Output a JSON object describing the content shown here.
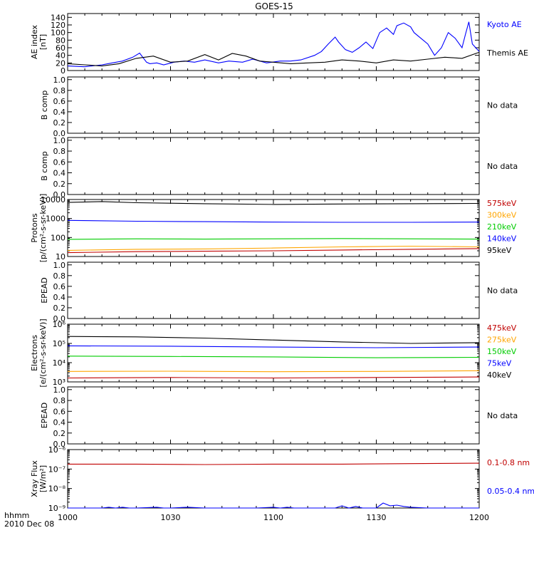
{
  "figure": {
    "title": "GOES-15",
    "time_label": "hhmm",
    "date_label": "2010 Dec 08",
    "no_data_text": "No data"
  },
  "colors": {
    "black": "#000000",
    "red": "#c00000",
    "orange": "#ffa500",
    "green": "#00cc00",
    "blue": "#0000ff",
    "axis": "#000000"
  },
  "chart_data": [
    {
      "type": "line",
      "id": "ae",
      "ylabel": "AE index\n[nT]",
      "ylim": [
        0,
        150
      ],
      "yticks": [
        0,
        20,
        40,
        60,
        80,
        100,
        120,
        140
      ],
      "xlim": [
        0,
        120
      ],
      "series": [
        {
          "name": "Kyoto AE",
          "color": "#0000ff",
          "x": [
            0,
            5,
            10,
            13,
            16,
            19,
            21,
            23,
            24,
            26,
            28,
            31,
            34,
            37,
            40,
            44,
            47,
            51,
            54,
            58,
            62,
            65,
            68,
            72,
            74,
            76,
            78,
            79,
            81,
            83,
            85,
            87,
            89,
            91,
            93,
            95,
            96,
            98,
            100,
            101,
            103,
            105,
            107,
            109,
            111,
            113,
            115,
            116,
            117,
            118,
            119,
            120
          ],
          "y": [
            12,
            10,
            15,
            20,
            25,
            35,
            46,
            22,
            18,
            20,
            15,
            22,
            25,
            22,
            28,
            20,
            25,
            22,
            30,
            20,
            25,
            25,
            28,
            40,
            50,
            70,
            88,
            75,
            55,
            48,
            60,
            75,
            58,
            100,
            112,
            95,
            118,
            125,
            115,
            100,
            85,
            70,
            40,
            60,
            100,
            85,
            60,
            95,
            128,
            70,
            60,
            50
          ]
        },
        {
          "name": "Themis AE",
          "color": "#000000",
          "x": [
            0,
            5,
            10,
            15,
            20,
            25,
            30,
            35,
            40,
            44,
            48,
            52,
            56,
            60,
            65,
            70,
            75,
            80,
            85,
            90,
            95,
            100,
            105,
            110,
            115,
            120
          ],
          "y": [
            18,
            15,
            12,
            18,
            32,
            38,
            22,
            25,
            42,
            28,
            45,
            38,
            25,
            22,
            18,
            20,
            22,
            28,
            25,
            20,
            28,
            25,
            30,
            35,
            32,
            48
          ]
        }
      ],
      "labels": [
        {
          "text": "Kyoto AE",
          "color": "#0000ff"
        },
        {
          "text": "Themis AE",
          "color": "#000000"
        }
      ]
    },
    {
      "type": "line",
      "id": "b1",
      "ylabel": "B comp",
      "ylim": [
        0,
        1.05
      ],
      "yticks": [
        "0.0",
        "0.2",
        "0.4",
        "0.6",
        "0.8",
        "1.0"
      ],
      "xlim": [
        0,
        120
      ],
      "series": []
    },
    {
      "type": "line",
      "id": "b2",
      "ylabel": "B comp",
      "ylim": [
        0,
        1.05
      ],
      "yticks": [
        "0.0",
        "0.2",
        "0.4",
        "0.6",
        "0.8",
        "1.0"
      ],
      "xlim": [
        0,
        120
      ],
      "series": []
    },
    {
      "type": "line",
      "id": "protons",
      "ylabel": "Protons\n[p/(cm²-s-sr-keV)]",
      "yscale": "log",
      "ylim": [
        10,
        10000
      ],
      "yticks": [
        "10",
        "100",
        "1000",
        "10000"
      ],
      "xlim": [
        0,
        120
      ],
      "series": [
        {
          "name": "575keV",
          "color": "#c00000",
          "x": [
            0,
            20,
            40,
            60,
            80,
            100,
            120
          ],
          "y": [
            16,
            18,
            19,
            20,
            22,
            24,
            26
          ]
        },
        {
          "name": "300keV",
          "color": "#ffa500",
          "x": [
            0,
            20,
            40,
            60,
            80,
            100,
            120
          ],
          "y": [
            21,
            24,
            25,
            28,
            32,
            35,
            32
          ]
        },
        {
          "name": "210keV",
          "color": "#00cc00",
          "x": [
            0,
            20,
            40,
            60,
            80,
            100,
            120
          ],
          "y": [
            80,
            85,
            82,
            85,
            88,
            85,
            82
          ]
        },
        {
          "name": "140keV",
          "color": "#0000ff",
          "x": [
            0,
            20,
            40,
            60,
            80,
            100,
            120
          ],
          "y": [
            800,
            720,
            680,
            650,
            630,
            630,
            650
          ]
        },
        {
          "name": "95keV",
          "color": "#000000",
          "x": [
            0,
            10,
            20,
            40,
            60,
            80,
            100,
            120
          ],
          "y": [
            7000,
            7800,
            6800,
            6000,
            5500,
            5800,
            6000,
            6200
          ]
        }
      ],
      "labels": [
        {
          "text": "575keV",
          "color": "#c00000"
        },
        {
          "text": "300keV",
          "color": "#ffa500"
        },
        {
          "text": "210keV",
          "color": "#00cc00"
        },
        {
          "text": "140keV",
          "color": "#0000ff"
        },
        {
          "text": "95keV",
          "color": "#000000"
        }
      ]
    },
    {
      "type": "line",
      "id": "epead1",
      "ylabel": "EPEAD",
      "ylim": [
        0,
        1.05
      ],
      "yticks": [
        "0.0",
        "0.2",
        "0.4",
        "0.6",
        "0.8",
        "1.0"
      ],
      "xlim": [
        0,
        120
      ],
      "series": []
    },
    {
      "type": "line",
      "id": "electrons",
      "ylabel": "Electrons\n[e/(cm²-s-sr-keV)]",
      "yscale": "log",
      "ylim": [
        1000,
        1000000
      ],
      "yticks": [
        "10³",
        "10⁴",
        "10⁵",
        "10⁶"
      ],
      "xlim": [
        0,
        120
      ],
      "series": [
        {
          "name": "475keV",
          "color": "#c00000",
          "x": [
            0,
            30,
            60,
            90,
            120
          ],
          "y": [
            1600,
            1700,
            1600,
            1700,
            1800
          ]
        },
        {
          "name": "275keV",
          "color": "#ffa500",
          "x": [
            0,
            30,
            60,
            90,
            120
          ],
          "y": [
            3500,
            3600,
            3400,
            3500,
            3800
          ]
        },
        {
          "name": "150keV",
          "color": "#00cc00",
          "x": [
            0,
            30,
            60,
            90,
            120
          ],
          "y": [
            22000,
            21000,
            20000,
            18000,
            19000
          ]
        },
        {
          "name": "75keV",
          "color": "#0000ff",
          "x": [
            0,
            30,
            60,
            90,
            120
          ],
          "y": [
            75000,
            72000,
            65000,
            60000,
            65000
          ]
        },
        {
          "name": "40keV",
          "color": "#000000",
          "x": [
            0,
            20,
            40,
            60,
            80,
            100,
            120
          ],
          "y": [
            230000,
            220000,
            190000,
            150000,
            120000,
            100000,
            110000
          ]
        }
      ],
      "labels": [
        {
          "text": "475keV",
          "color": "#c00000"
        },
        {
          "text": "275keV",
          "color": "#ffa500"
        },
        {
          "text": "150keV",
          "color": "#00cc00"
        },
        {
          "text": "75keV",
          "color": "#0000ff"
        },
        {
          "text": "40keV",
          "color": "#000000"
        }
      ]
    },
    {
      "type": "line",
      "id": "epead2",
      "ylabel": "EPEAD",
      "ylim": [
        0,
        1.05
      ],
      "yticks": [
        "0.0",
        "0.2",
        "0.4",
        "0.6",
        "0.8",
        "1.0"
      ],
      "xlim": [
        0,
        120
      ],
      "series": []
    },
    {
      "type": "line",
      "id": "xray",
      "ylabel": "Xray Flux\n[W/m²]",
      "yscale": "log",
      "ylim": [
        1e-09,
        1e-06
      ],
      "yticks": [
        "10⁻⁹",
        "10⁻⁸",
        "10⁻⁷",
        "10⁻⁶"
      ],
      "xlim": [
        0,
        120
      ],
      "series": [
        {
          "name": "0.1-0.8 nm",
          "color": "#c00000",
          "x": [
            0,
            20,
            40,
            60,
            80,
            100,
            120
          ],
          "y": [
            1.8e-07,
            1.8e-07,
            1.7e-07,
            1.8e-07,
            1.8e-07,
            1.9e-07,
            2e-07
          ]
        },
        {
          "name": "0.05-0.4 nm",
          "color": "#0000ff",
          "x": [
            0,
            10,
            12,
            14,
            16,
            18,
            20,
            26,
            28,
            30,
            35,
            40,
            45,
            48,
            50,
            55,
            60,
            62,
            64,
            66,
            70,
            78,
            80,
            82,
            84,
            86,
            88,
            90,
            92,
            94,
            96,
            98,
            100,
            105,
            110,
            115,
            120
          ],
          "y": [
            1e-09,
            1e-09,
            1.1e-09,
            1e-09,
            1.1e-09,
            1e-09,
            1e-09,
            1.1e-09,
            1e-09,
            1e-09,
            1.1e-09,
            1e-09,
            1e-09,
            1e-09,
            1e-09,
            1e-09,
            1.1e-09,
            1e-09,
            1.1e-09,
            1e-09,
            1e-09,
            1e-09,
            1.3e-09,
            1e-09,
            1.2e-09,
            1e-09,
            1e-09,
            1e-09,
            1.8e-09,
            1.3e-09,
            1.4e-09,
            1.2e-09,
            1.1e-09,
            1e-09,
            1e-09,
            1e-09,
            1e-09
          ]
        }
      ],
      "labels": [
        {
          "text": "0.1-0.8 nm",
          "color": "#c00000"
        },
        {
          "text": "0.05-0.4 nm",
          "color": "#0000ff"
        }
      ]
    }
  ],
  "xaxis": {
    "ticks": [
      {
        "value": 0,
        "label": "1000"
      },
      {
        "value": 30,
        "label": "1030"
      },
      {
        "value": 60,
        "label": "1100"
      },
      {
        "value": 90,
        "label": "1130"
      },
      {
        "value": 120,
        "label": "1200"
      }
    ]
  }
}
